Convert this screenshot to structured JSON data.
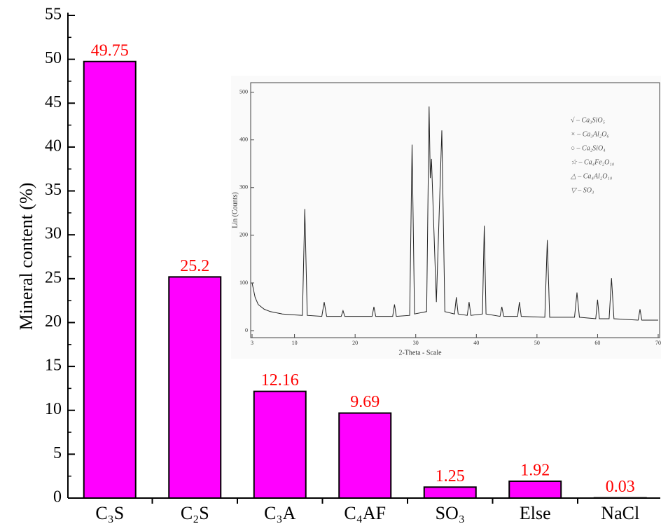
{
  "chart_data": [
    {
      "type": "bar",
      "ylabel": "Mineral content (%)",
      "categories": [
        "C₃S",
        "C₂S",
        "C₃A",
        "C₄AF",
        "SO₃",
        "Else",
        "NaCl"
      ],
      "values": [
        49.75,
        25.2,
        12.16,
        9.69,
        1.25,
        1.92,
        0.03
      ],
      "color": "#ff00ff",
      "label_color": "#ff0000",
      "ylim": [
        0,
        55
      ],
      "yticks": [
        0,
        5,
        10,
        15,
        20,
        25,
        30,
        35,
        40,
        45,
        50,
        55
      ]
    },
    {
      "type": "line",
      "xlabel": "2-Theta - Scale",
      "ylabel": "Lin (Counts)",
      "color": "#222222",
      "legend": [
        "√ – Ca₃SiO₅",
        "× – Ca₃Al₂O₆",
        "○ – Ca₂SiO₄",
        "☆ – Ca₄Fe₂O₁₀",
        "△ – Ca₄Al₂O₁₀",
        "▽ – SO₃"
      ],
      "x": [
        3,
        3.5,
        4,
        5,
        6,
        8,
        10,
        11.3,
        11.7,
        12.1,
        14.5,
        14.9,
        15.3,
        17.7,
        18,
        18.3,
        22.8,
        23.1,
        23.4,
        26.2,
        26.5,
        26.8,
        29,
        29.4,
        29.8,
        31.8,
        32.2,
        32.4,
        32.6,
        33.4,
        34.3,
        34.8,
        36.4,
        36.7,
        37,
        38.5,
        38.8,
        39.1,
        41,
        41.3,
        41.6,
        43.9,
        44.2,
        44.5,
        46.8,
        47.1,
        47.4,
        51.3,
        51.7,
        52.1,
        56.2,
        56.6,
        57,
        59.7,
        60,
        60.3,
        61.9,
        62.3,
        62.7,
        66.7,
        67,
        67.3,
        70
      ],
      "values": [
        100,
        70,
        55,
        45,
        40,
        35,
        33,
        32,
        255,
        32,
        30,
        60,
        30,
        30,
        42,
        30,
        30,
        50,
        30,
        30,
        55,
        30,
        32,
        390,
        35,
        40,
        470,
        320,
        360,
        60,
        420,
        40,
        35,
        70,
        35,
        32,
        60,
        32,
        35,
        220,
        35,
        30,
        50,
        30,
        30,
        60,
        30,
        28,
        190,
        28,
        28,
        80,
        28,
        25,
        65,
        25,
        25,
        110,
        25,
        22,
        45,
        22,
        22
      ],
      "xlim": [
        3,
        70
      ],
      "xticks": [
        3,
        10,
        20,
        30,
        40,
        50,
        60,
        70
      ],
      "ylim": [
        0,
        520
      ],
      "yticks": [
        0,
        100,
        200,
        300,
        400,
        500
      ]
    }
  ]
}
